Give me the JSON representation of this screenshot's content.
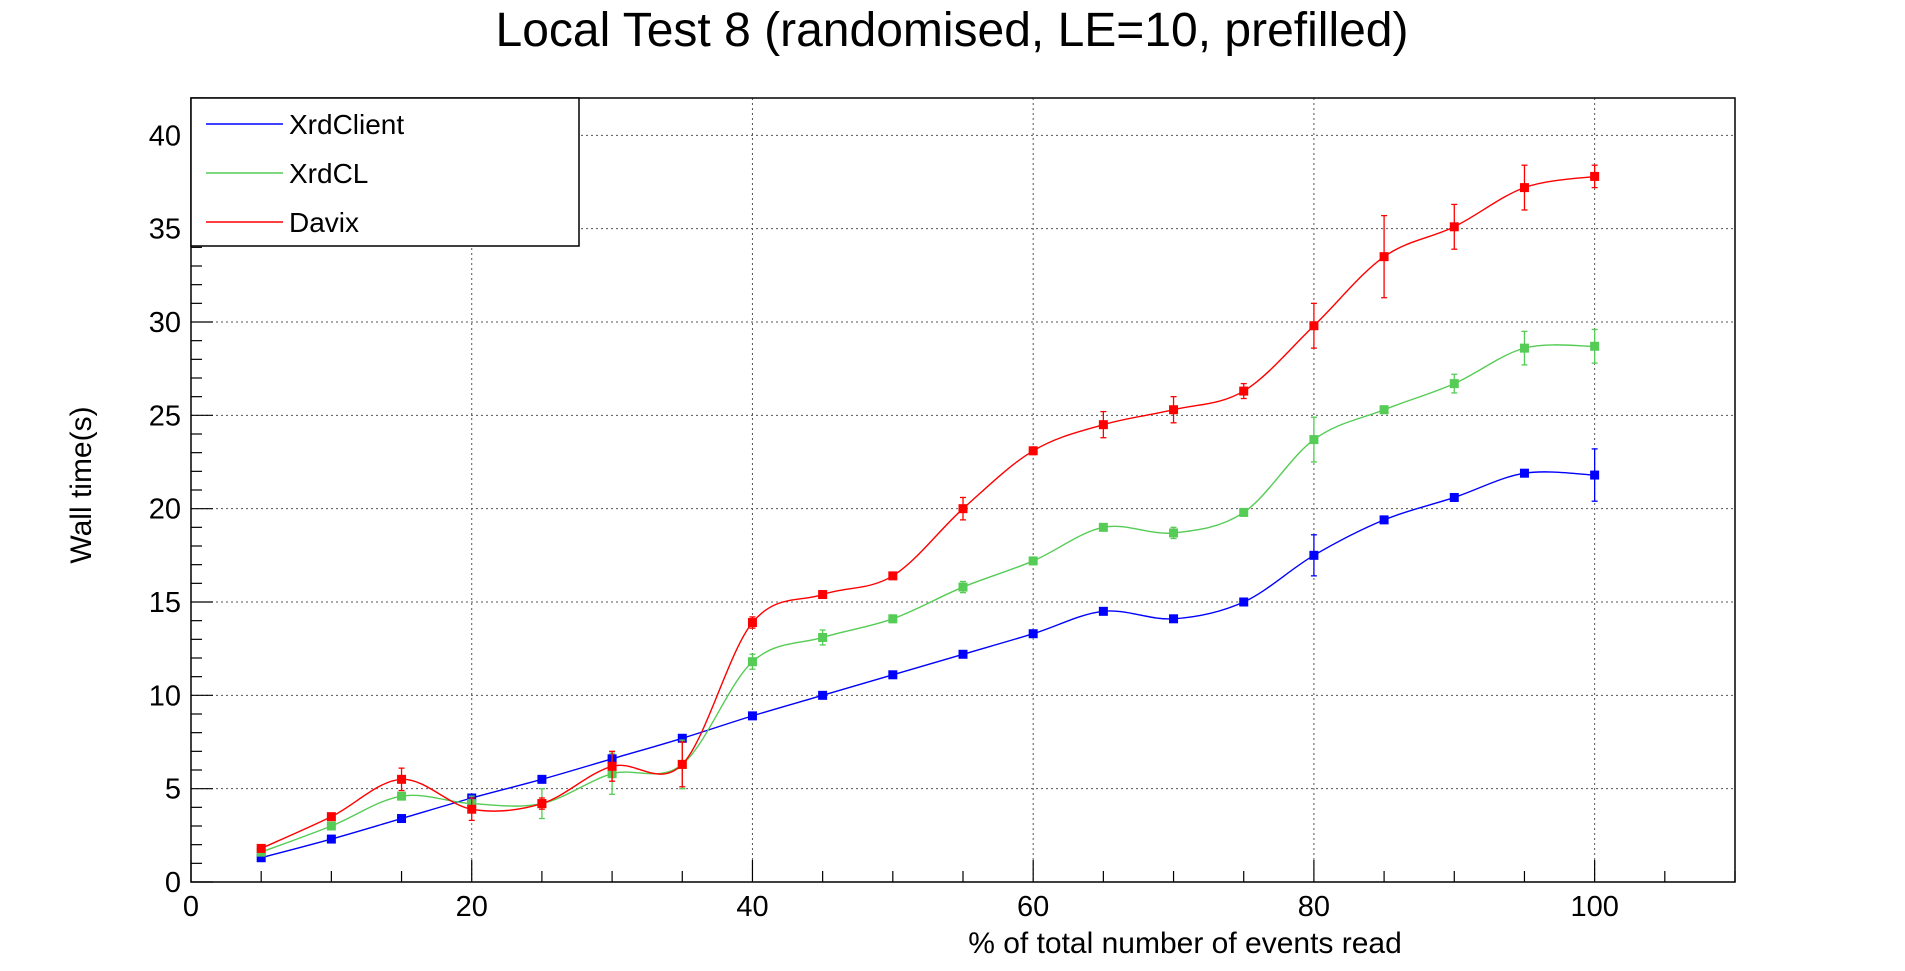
{
  "chart_data": {
    "type": "line",
    "title": "Local Test 8 (randomised, LE=10, prefilled)",
    "xlabel": "% of total number of events read",
    "ylabel": "Wall time(s)",
    "xlim": [
      0,
      110
    ],
    "ylim": [
      0,
      42
    ],
    "x_ticks": [
      0,
      20,
      40,
      60,
      80,
      100
    ],
    "y_ticks": [
      0,
      5,
      10,
      15,
      20,
      25,
      30,
      35,
      40
    ],
    "grid": true,
    "legend_position": "top-left",
    "x": [
      5,
      10,
      15,
      20,
      25,
      30,
      35,
      40,
      45,
      50,
      55,
      60,
      65,
      70,
      75,
      80,
      85,
      90,
      95,
      100
    ],
    "series": [
      {
        "name": "XrdClient",
        "color": "#0000ff",
        "values": [
          1.3,
          2.3,
          3.4,
          4.5,
          5.5,
          6.6,
          7.7,
          8.9,
          10.0,
          11.1,
          12.2,
          13.3,
          14.5,
          14.1,
          15.0,
          17.5,
          19.4,
          20.6,
          21.9,
          21.8
        ],
        "errors": [
          0.1,
          0.1,
          0.1,
          0.15,
          0.1,
          0.2,
          0.1,
          0.15,
          0.1,
          0.1,
          0.15,
          0.15,
          0.1,
          0.15,
          0.2,
          1.1,
          0.15,
          0.15,
          0.15,
          1.4
        ]
      },
      {
        "name": "XrdCL",
        "color": "#55cc55",
        "values": [
          1.6,
          3.0,
          4.6,
          4.2,
          4.2,
          5.8,
          6.3,
          11.8,
          13.1,
          14.1,
          15.8,
          17.2,
          19.0,
          18.7,
          19.8,
          23.7,
          25.3,
          26.7,
          28.6,
          28.7
        ],
        "errors": [
          0.1,
          0.1,
          0.15,
          0.4,
          0.8,
          1.1,
          1.3,
          0.4,
          0.4,
          0.2,
          0.3,
          0.2,
          0.15,
          0.3,
          0.2,
          1.2,
          0.2,
          0.5,
          0.9,
          0.9
        ]
      },
      {
        "name": "Davix",
        "color": "#ff0000",
        "values": [
          1.8,
          3.5,
          5.5,
          3.9,
          4.2,
          6.2,
          6.3,
          13.9,
          15.4,
          16.4,
          20.0,
          23.1,
          24.5,
          25.3,
          26.3,
          29.8,
          33.5,
          35.1,
          37.2,
          37.8
        ],
        "errors": [
          0.1,
          0.1,
          0.6,
          0.6,
          0.3,
          0.8,
          1.2,
          0.3,
          0.15,
          0.15,
          0.6,
          0.2,
          0.7,
          0.7,
          0.4,
          1.2,
          2.2,
          1.2,
          1.2,
          0.6
        ]
      }
    ]
  }
}
